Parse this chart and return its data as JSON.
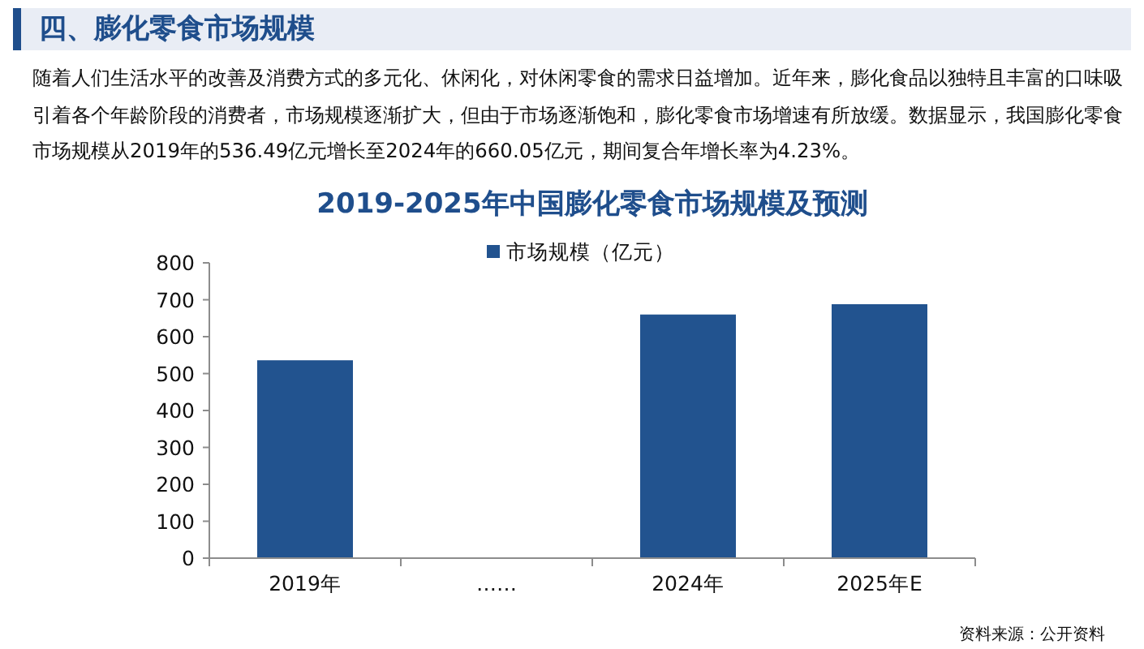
{
  "chart_data": {
    "type": "bar",
    "title": "2019-2025年中国膨化零食市场规模及预测",
    "annotations": [
      "四、膨化零食市场规模",
      "随着人们生活水平的改善及消费方式的多元化、休闲化，对休闲零食的需求日益增加。近年来，膨化食品以独特且丰富的口味吸引着各个年龄阶段的消费者，市场规模逐渐扩大，但由于市场逐渐饱和，膨化零食市场增速有所放缓。数据显示，我国膨化零食市场规模从2019年的536.49亿元增长至2024年的660.05亿元，期间复合年增长率为4.23%。",
      "资料来源：公开资料"
    ],
    "categories": [
      "2019年",
      "……",
      "2024年",
      "2025年E"
    ],
    "series": [
      {
        "name": "市场规模（亿元）",
        "color": "#22538f",
        "values": [
          536,
          null,
          660,
          688
        ]
      }
    ],
    "ylim": [
      0,
      800
    ],
    "yticks": [
      0,
      100,
      200,
      300,
      400,
      500,
      600,
      700,
      800
    ],
    "legend": "top",
    "grid": false
  }
}
